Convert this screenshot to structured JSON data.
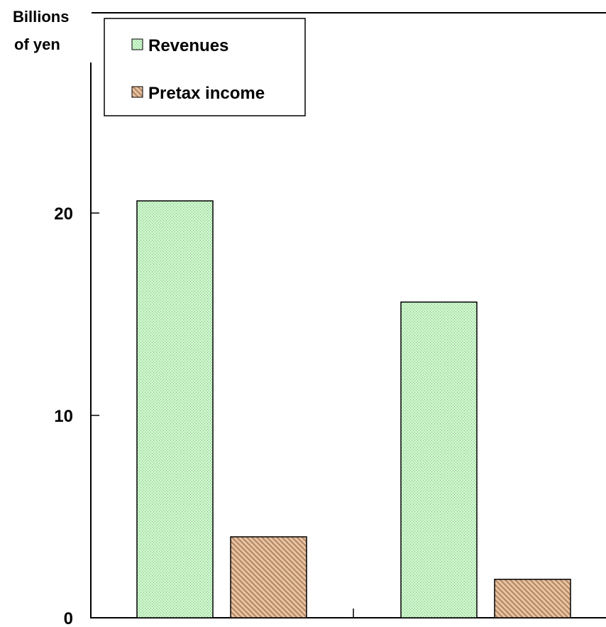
{
  "chart_data": {
    "type": "bar",
    "ylabel": "Billions\nof yen",
    "ylabel_lines": [
      "Billions",
      "of yen"
    ],
    "ylim": [
      0,
      29
    ],
    "yticks": [
      0,
      10,
      20
    ],
    "categories": [
      "",
      ""
    ],
    "series": [
      {
        "name": "Revenues",
        "values": [
          20.6,
          15.6
        ],
        "color": "#ccf5cc",
        "pattern": "dots"
      },
      {
        "name": "Pretax income",
        "values": [
          4.0,
          1.9
        ],
        "color": "#e0b894",
        "pattern": "diagonal-stripes"
      }
    ],
    "legend": {
      "position": "top-left"
    },
    "grid": false
  }
}
